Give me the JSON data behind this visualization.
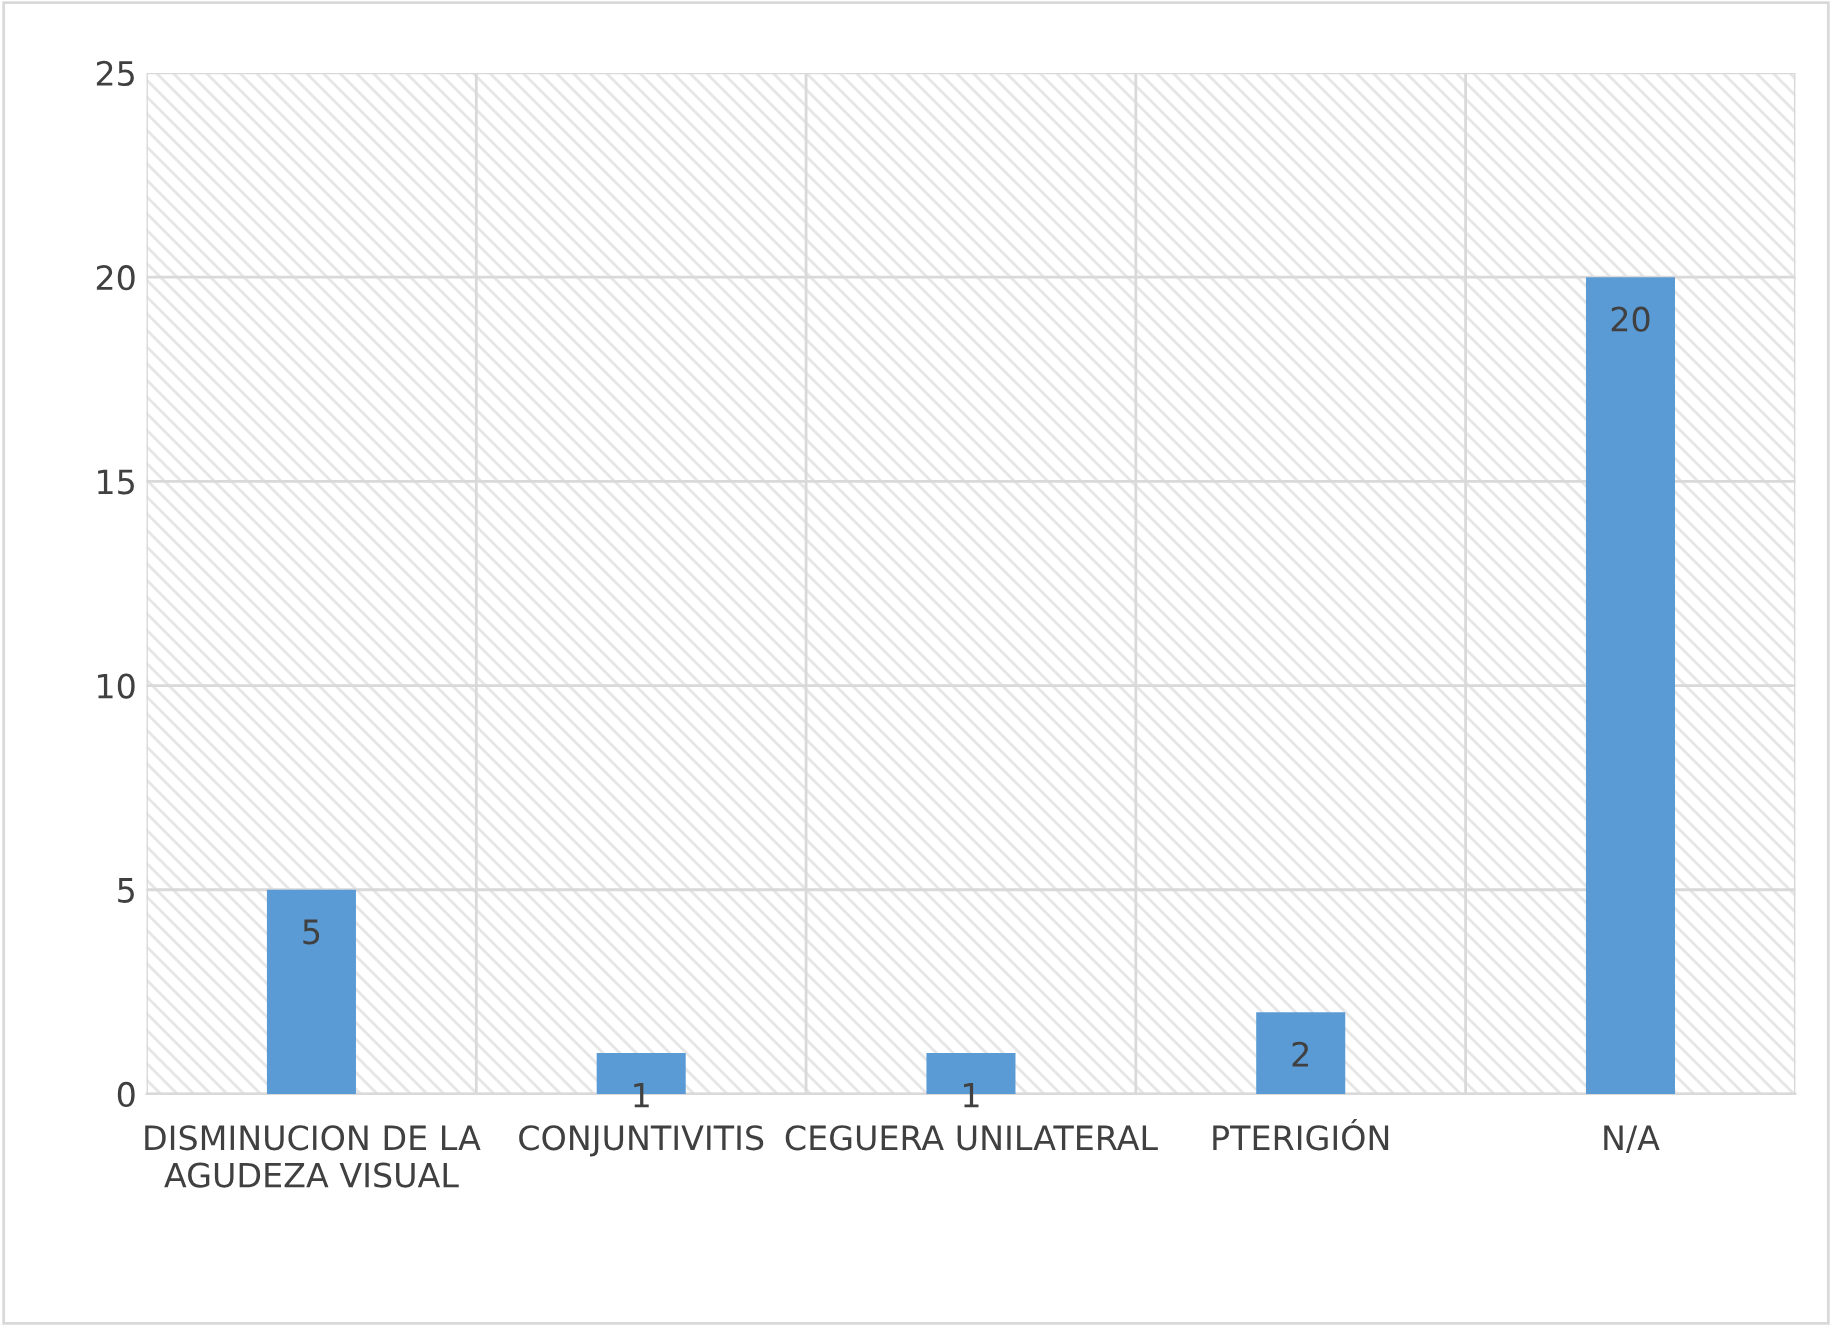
{
  "chart_data": {
    "type": "bar",
    "categories": [
      "DISMINUCION DE LA AGUDEZA VISUAL",
      "CONJUNTIVITIS",
      "CEGUERA UNILATERAL",
      "PTERIGIÓN",
      "N/A"
    ],
    "values": [
      5,
      1,
      1,
      2,
      20
    ],
    "color": "#5b9bd5",
    "ylim": [
      0,
      25
    ],
    "yticks": [
      0,
      5,
      10,
      15,
      20,
      25
    ],
    "grid": true,
    "data_labels": true
  }
}
